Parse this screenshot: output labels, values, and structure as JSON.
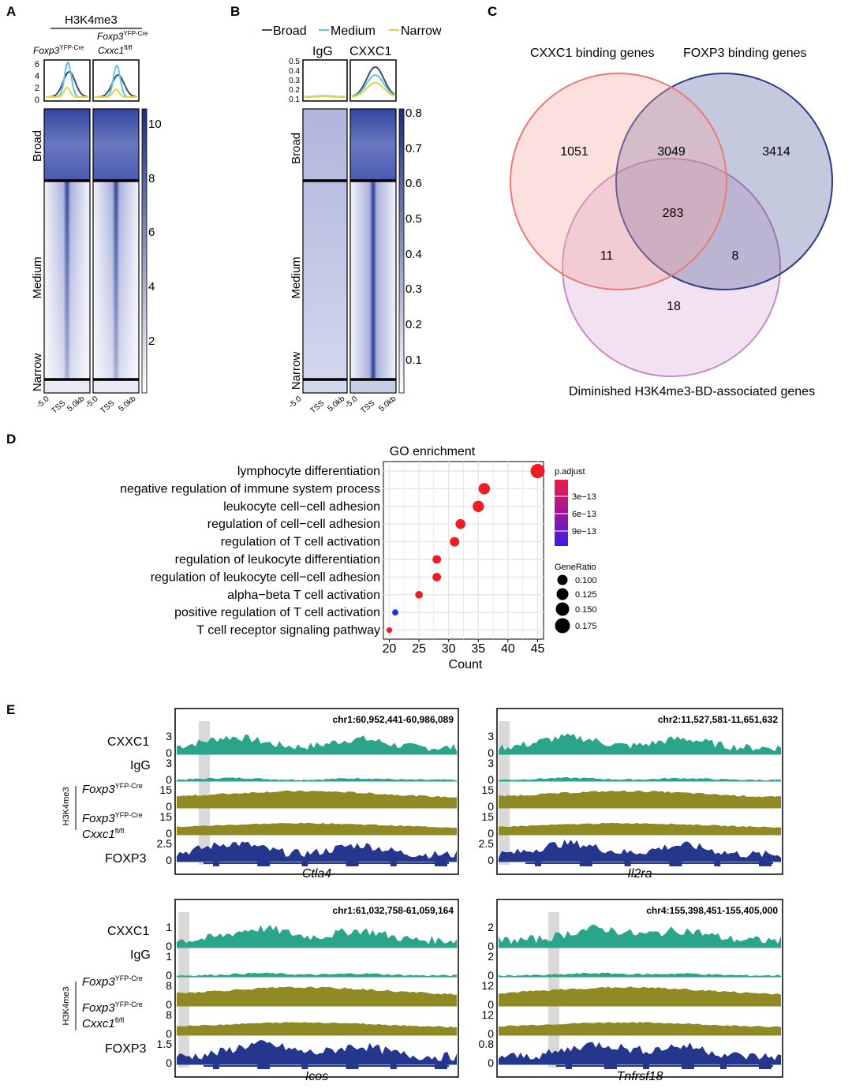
{
  "panel_letters": {
    "a": "A",
    "b": "B",
    "c": "C",
    "d": "D",
    "e": "E"
  },
  "panelA": {
    "title": "H3K4me3",
    "col1": {
      "gene": "Foxp3",
      "sup": "YFP-Cre"
    },
    "col2_top": {
      "gene": "Foxp3",
      "sup": "YFP-Cre"
    },
    "col2_bottom": {
      "gene": "Cxxc1",
      "sup": "fl/fl"
    },
    "profile_ticks": [
      "6",
      "4",
      "2",
      "0"
    ],
    "rows": [
      "Broad",
      "Medium",
      "Narrow"
    ],
    "colorbar": [
      "10",
      "8",
      "6",
      "4",
      "2"
    ],
    "x_ticks": [
      "-5.0",
      "TSS",
      "5.0kb"
    ]
  },
  "panelB": {
    "legend": [
      "Broad",
      "Medium",
      "Narrow"
    ],
    "cols": [
      "IgG",
      "CXXC1"
    ],
    "profile_ticks": [
      "0.5",
      "0.4",
      "0.3",
      "0.2",
      "0.1"
    ],
    "rows": [
      "Broad",
      "Medium",
      "Narrow"
    ],
    "colorbar": [
      "0.8",
      "0.7",
      "0.6",
      "0.5",
      "0.4",
      "0.3",
      "0.2",
      "0.1"
    ],
    "x_ticks": [
      "-5.0",
      "TSS",
      "5.0kb"
    ]
  },
  "colors": {
    "broad": "#3d4a6b",
    "medium": "#5bc8e0",
    "narrow": "#e8d33a",
    "heat": "#2e3f96",
    "cxxc1": "#2aa58a",
    "h3k4": "#8f8a24",
    "foxp3": "#24378c"
  },
  "venn": {
    "label_cxxc1": "CXXC1 binding genes",
    "label_foxp3": "FOXP3 binding genes",
    "label_h3k4": "Diminished H3K4me3-BD-associated genes",
    "only_cxxc1": "1051",
    "cxxc1_foxp3": "3049",
    "only_foxp3": "3414",
    "all_three": "283",
    "cxxc1_h3k4": "11",
    "foxp3_h3k4": "8",
    "only_h3k4": "18"
  },
  "chart_data": {
    "type": "scatter",
    "title": "GO enrichment",
    "xlabel": "Count",
    "xlim": [
      19,
      46
    ],
    "xticks": [
      "20",
      "25",
      "30",
      "35",
      "40",
      "45"
    ],
    "terms": [
      "lymphocyte differentiation",
      "negative regulation of immune system process",
      "leukocyte cell−cell adhesion",
      "regulation of cell−cell adhesion",
      "regulation of T cell activation",
      "regulation of leukocyte differentiation",
      "regulation of leukocyte cell−cell adhesion",
      "alpha−beta T cell activation",
      "positive regulation of T cell activation",
      "T cell receptor signaling pathway"
    ],
    "counts": [
      45,
      36,
      35,
      32,
      31,
      28,
      28,
      25,
      21,
      20
    ],
    "gene_ratio": [
      0.18,
      0.15,
      0.15,
      0.135,
      0.13,
      0.12,
      0.12,
      0.11,
      0.095,
      0.09
    ],
    "p_adjust_color": [
      "#ee1c25",
      "#ee1c25",
      "#ee1c25",
      "#ee1c25",
      "#ee1c25",
      "#ee1c25",
      "#ee1c25",
      "#ee1c25",
      "#1c2ee8",
      "#ee1c25"
    ],
    "legend_padj_title": "p.adjust",
    "legend_padj_ticks": [
      "3e−13",
      "6e−13",
      "9e−13"
    ],
    "legend_ratio_title": "GeneRatio",
    "legend_ratio_ticks": [
      "0.100",
      "0.125",
      "0.150",
      "0.175"
    ]
  },
  "tracks": {
    "labels": {
      "cxxc1": "CXXC1",
      "igg": "IgG",
      "foxp3": "FOXP3",
      "h3k4me3": "H3K4me3",
      "gene1": "Foxp3",
      "sup1": "YFP-Cre",
      "gene2": "Cxxc1",
      "sup2": "fl/fl"
    },
    "panels": [
      {
        "coord": "chr1:60,952,441-60,986,089",
        "gene": "Ctla4",
        "scales": [
          "3",
          "3",
          "15",
          "15",
          "2.5"
        ]
      },
      {
        "coord": "chr2:11,527,581-11,651,632",
        "gene": "Il2ra",
        "scales": [
          "3",
          "3",
          "15",
          "15",
          "2.5"
        ]
      },
      {
        "coord": "chr1:61,032,758-61,059,164",
        "gene": "Icos",
        "scales": [
          "1",
          "1",
          "8",
          "8",
          "1.5"
        ]
      },
      {
        "coord": "chr4:155,398,451-155,405,000",
        "gene": "Tnfrsf18",
        "scales": [
          "2",
          "2",
          "12",
          "12",
          "0.8"
        ]
      }
    ]
  }
}
